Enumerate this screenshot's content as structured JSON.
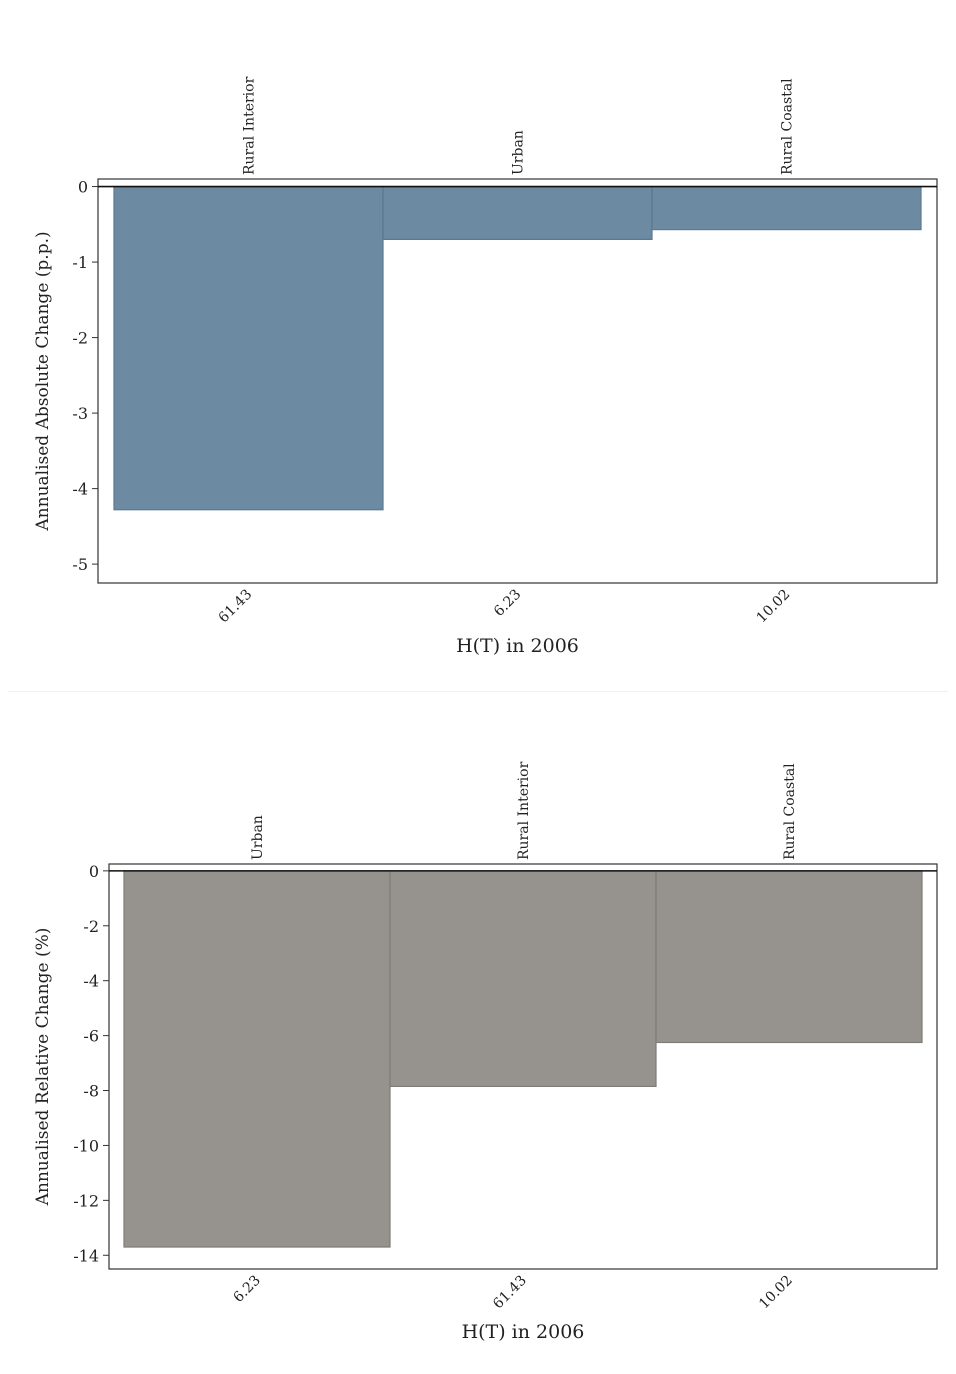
{
  "chart_data": [
    {
      "type": "bar",
      "categories": [
        "Rural Interior",
        "Urban",
        "Rural Coastal"
      ],
      "x_tick_labels": [
        "61.43",
        "6.23",
        "10.02"
      ],
      "values": [
        -4.28,
        -0.7,
        -0.57
      ],
      "xlabel": "H(T) in 2006",
      "ylabel": "Annualised Absolute Change (p.p.)",
      "yticks": [
        0,
        -1,
        -2,
        -3,
        -4,
        -5
      ],
      "ylim": [
        -5.25,
        0.1
      ],
      "bar_color": "#6c8ba3",
      "bar_edge_color": "#5a7890",
      "legend": "none",
      "grid": false
    },
    {
      "type": "bar",
      "categories": [
        "Urban",
        "Rural Interior",
        "Rural Coastal"
      ],
      "x_tick_labels": [
        "6.23",
        "61.43",
        "10.02"
      ],
      "values": [
        -13.7,
        -7.85,
        -6.25
      ],
      "xlabel": "H(T) in 2006",
      "ylabel": "Annualised Relative Change (%)",
      "yticks": [
        0,
        -2,
        -4,
        -6,
        -8,
        -10,
        -12,
        -14
      ],
      "ylim": [
        -14.5,
        0.25
      ],
      "bar_color": "#96928d",
      "bar_edge_color": "#7f7b76",
      "legend": "none",
      "grid": false
    }
  ]
}
